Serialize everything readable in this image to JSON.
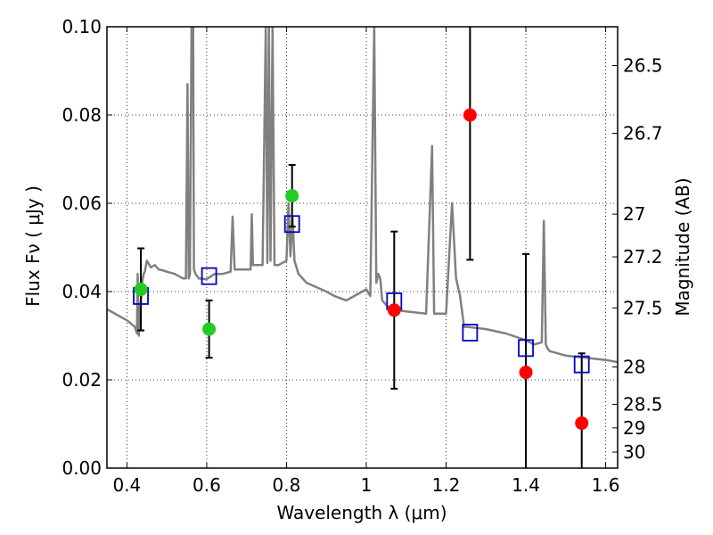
{
  "chart_data": {
    "type": "scatter",
    "xlabel": "Wavelength  λ (μm)",
    "ylabel": "Flux  Fν  ( μJy )",
    "y2label": "Magnitude (AB)",
    "xlim": [
      0.35,
      1.63
    ],
    "ylim": [
      0.0,
      0.1
    ],
    "grid": true,
    "x_ticks": [
      0.4,
      0.6,
      0.8,
      1.0,
      1.2,
      1.4,
      1.6
    ],
    "x_tick_labels": [
      "0.4",
      "0.6",
      "0.8",
      "1",
      "1.2",
      "1.4",
      "1.6"
    ],
    "y_ticks": [
      0.0,
      0.02,
      0.04,
      0.06,
      0.08,
      0.1
    ],
    "y_tick_labels": [
      "0.00",
      "0.02",
      "0.04",
      "0.06",
      "0.08",
      "0.10"
    ],
    "y2_ticks": [
      {
        "label": "26.5",
        "mag": 26.5
      },
      {
        "label": "26.7",
        "mag": 26.7
      },
      {
        "label": "27",
        "mag": 27.0
      },
      {
        "label": "27.2",
        "mag": 27.2
      },
      {
        "label": "27.5",
        "mag": 27.5
      },
      {
        "label": "28",
        "mag": 28.0
      },
      {
        "label": "28.5",
        "mag": 28.5
      },
      {
        "label": "29",
        "mag": 29.0
      },
      {
        "label": "30",
        "mag": 30.0
      }
    ],
    "series": [
      {
        "marker": "circle",
        "color": "#22cc22",
        "points": [
          {
            "x": 0.435,
            "y": 0.0405,
            "err": 0.0093
          },
          {
            "x": 0.606,
            "y": 0.0315,
            "err": 0.0065
          },
          {
            "x": 0.814,
            "y": 0.0617,
            "err": 0.007
          }
        ]
      },
      {
        "marker": "circle",
        "color": "#ff0000",
        "points": [
          {
            "x": 1.07,
            "y": 0.0358,
            "err": 0.0178
          },
          {
            "x": 1.26,
            "y": 0.08,
            "err": 0.0328
          },
          {
            "x": 1.4,
            "y": 0.0217,
            "err": 0.0268
          },
          {
            "x": 1.54,
            "y": 0.0102,
            "err": 0.0158
          }
        ]
      },
      {
        "marker": "square",
        "color": "#0000cc",
        "points": [
          {
            "x": 0.435,
            "y": 0.039
          },
          {
            "x": 0.606,
            "y": 0.0435
          },
          {
            "x": 0.814,
            "y": 0.0553
          },
          {
            "x": 1.07,
            "y": 0.0378
          },
          {
            "x": 1.26,
            "y": 0.0307
          },
          {
            "x": 1.4,
            "y": 0.0272
          },
          {
            "x": 1.54,
            "y": 0.0235
          }
        ]
      },
      {
        "type": "line",
        "color": "#808080",
        "x": [
          0.35,
          0.4,
          0.42,
          0.425,
          0.427,
          0.43,
          0.434,
          0.438,
          0.442,
          0.445,
          0.45,
          0.46,
          0.47,
          0.48,
          0.49,
          0.5,
          0.52,
          0.54,
          0.548,
          0.552,
          0.555,
          0.558,
          0.562,
          0.566,
          0.568,
          0.572,
          0.576,
          0.58,
          0.6,
          0.62,
          0.64,
          0.66,
          0.665,
          0.67,
          0.7,
          0.71,
          0.713,
          0.716,
          0.72,
          0.74,
          0.748,
          0.752,
          0.756,
          0.76,
          0.765,
          0.77,
          0.78,
          0.8,
          0.805,
          0.81,
          0.815,
          0.82,
          0.83,
          0.85,
          0.9,
          0.92,
          0.95,
          0.98,
          1.0,
          1.01,
          1.02,
          1.025,
          1.03,
          1.035,
          1.04,
          1.06,
          1.1,
          1.15,
          1.165,
          1.17,
          1.2,
          1.215,
          1.225,
          1.235,
          1.245,
          1.255,
          1.3,
          1.35,
          1.4,
          1.42,
          1.44,
          1.445,
          1.45,
          1.455,
          1.46,
          1.5,
          1.55,
          1.6,
          1.63
        ],
        "y": [
          0.036,
          0.0335,
          0.032,
          0.0305,
          0.044,
          0.03,
          0.036,
          0.042,
          0.044,
          0.0445,
          0.047,
          0.0455,
          0.046,
          0.045,
          0.0448,
          0.0445,
          0.044,
          0.043,
          0.043,
          0.087,
          0.043,
          0.044,
          0.1,
          0.1,
          0.045,
          0.044,
          0.0435,
          0.043,
          0.0428,
          0.044,
          0.044,
          0.0445,
          0.057,
          0.045,
          0.045,
          0.045,
          0.0575,
          0.046,
          0.046,
          0.046,
          0.1,
          0.0465,
          0.1,
          0.047,
          0.1,
          0.046,
          0.046,
          0.047,
          0.06,
          0.048,
          0.057,
          0.047,
          0.044,
          0.042,
          0.04,
          0.039,
          0.038,
          0.0395,
          0.0405,
          0.039,
          0.1,
          0.042,
          0.044,
          0.043,
          0.038,
          0.036,
          0.0355,
          0.035,
          0.073,
          0.035,
          0.035,
          0.06,
          0.043,
          0.039,
          0.032,
          0.032,
          0.0315,
          0.0305,
          0.029,
          0.028,
          0.0285,
          0.056,
          0.028,
          0.027,
          0.0265,
          0.0255,
          0.025,
          0.0245,
          0.024
        ]
      }
    ]
  }
}
